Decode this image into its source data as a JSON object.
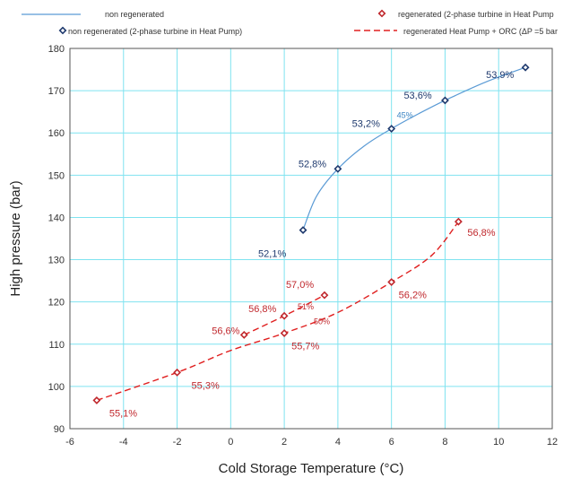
{
  "chart_data": {
    "type": "scatter",
    "xlabel": "Cold Storage Temperature (°C)",
    "ylabel": "High pressure (bar)",
    "xlim": [
      -6,
      12
    ],
    "ylim": [
      90,
      180
    ],
    "x_ticks": [
      -6,
      -4,
      -2,
      0,
      2,
      4,
      6,
      8,
      10,
      12
    ],
    "y_ticks": [
      90,
      100,
      110,
      120,
      130,
      140,
      150,
      160,
      170,
      180
    ],
    "grid": true,
    "legend": {
      "placement": "top",
      "entries": [
        {
          "label": "non regenerated",
          "kind": "line",
          "color": "#5b9bd5"
        },
        {
          "label": "regenerated (2-phase turbine in Heat Pump",
          "kind": "marker",
          "color": "#c0282d"
        },
        {
          "label": "non  regenerated (2-phase turbine in Heat Pump)",
          "kind": "marker",
          "color": "#1f3a6e"
        },
        {
          "label": "regenerated  Heat Pump + ORC (ΔP =5 bar",
          "kind": "dashed",
          "color": "#e02020"
        }
      ]
    },
    "series": [
      {
        "name": "non regenerated",
        "style": "line",
        "color": "#5b9bd5",
        "points": [
          {
            "x": 2.7,
            "y": 137
          },
          {
            "x": 3.2,
            "y": 145
          },
          {
            "x": 4,
            "y": 151.5
          },
          {
            "x": 5,
            "y": 157
          },
          {
            "x": 6,
            "y": 161
          },
          {
            "x": 7,
            "y": 164.5
          },
          {
            "x": 8,
            "y": 167.7
          },
          {
            "x": 9.5,
            "y": 172
          },
          {
            "x": 11,
            "y": 175.5
          }
        ]
      },
      {
        "name": "non  regenerated (2-phase turbine in Heat Pump)",
        "style": "marker",
        "color": "#1f3a6e",
        "points": [
          {
            "x": 2.7,
            "y": 137
          },
          {
            "x": 4,
            "y": 151.5
          },
          {
            "x": 6,
            "y": 161
          },
          {
            "x": 8,
            "y": 167.7
          },
          {
            "x": 11,
            "y": 175.5
          }
        ],
        "labels": [
          "52,1%",
          "52,8%",
          "53,2%",
          "53,6%",
          "53,9%"
        ]
      },
      {
        "name": "regenerated (2-phase turbine in Heat Pump",
        "style": "marker",
        "color": "#c0282d",
        "points": [
          {
            "x": -5,
            "y": 96.7
          },
          {
            "x": -2,
            "y": 103.3
          },
          {
            "x": 0.5,
            "y": 112.2
          },
          {
            "x": 2,
            "y": 116.7
          },
          {
            "x": 2,
            "y": 112.6
          },
          {
            "x": 3.5,
            "y": 121.6
          },
          {
            "x": 6,
            "y": 124.7
          },
          {
            "x": 8.5,
            "y": 139
          }
        ],
        "labels": [
          "55,1%",
          "55,3%",
          "56,6%",
          "56,8%",
          "55,7%",
          "57,0%",
          "56,2%",
          "56,8%"
        ]
      },
      {
        "name": "regenerated  Heat Pump + ORC (ΔP =5 bar",
        "style": "dashed",
        "color": "#e02020",
        "curves": [
          [
            {
              "x": -5,
              "y": 96.7
            },
            {
              "x": -2,
              "y": 103.3
            },
            {
              "x": 0,
              "y": 108.5
            },
            {
              "x": 2,
              "y": 112.6
            },
            {
              "x": 4,
              "y": 117.5
            },
            {
              "x": 6,
              "y": 124.7
            },
            {
              "x": 7.5,
              "y": 131
            },
            {
              "x": 8.5,
              "y": 139
            }
          ],
          [
            {
              "x": 0.5,
              "y": 112.2
            },
            {
              "x": 2,
              "y": 116.7
            },
            {
              "x": 3.5,
              "y": 121.6
            }
          ]
        ]
      }
    ],
    "annotations": [
      {
        "text": "45%",
        "x": 6.5,
        "y": 163.5,
        "color": "#3a84c3"
      },
      {
        "text": "51%",
        "x": 2.8,
        "y": 118.2,
        "color": "#c0282d"
      },
      {
        "text": "50%",
        "x": 3.4,
        "y": 114.7,
        "color": "#c0282d"
      }
    ]
  }
}
